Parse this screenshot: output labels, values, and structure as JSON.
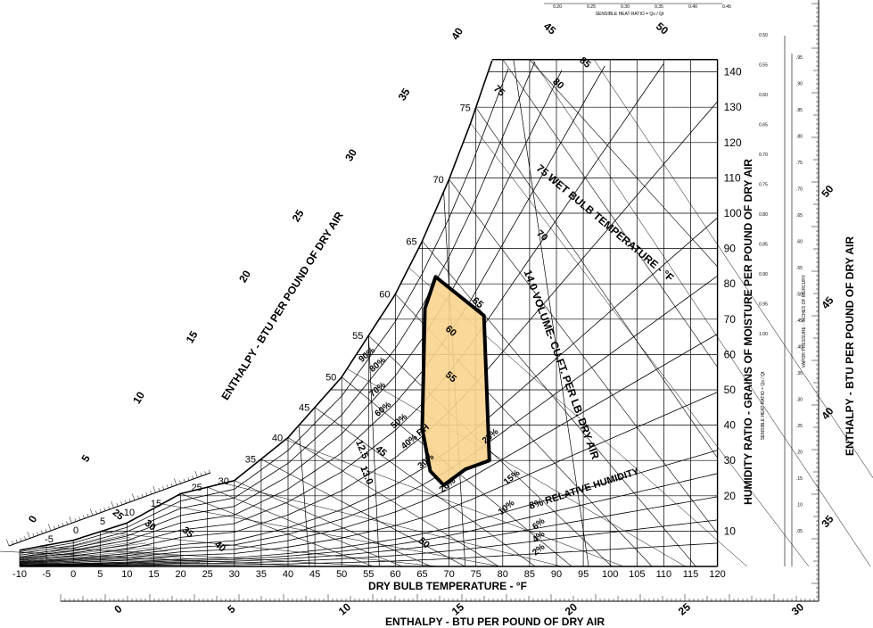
{
  "chart_data": {
    "type": "psychrometric",
    "title": "",
    "xlabel": "DRY BULB TEMPERATURE - °F",
    "ylabel": "HUMIDITY RATIO - GRAINS OF MOISTURE PER POUND OF DRY AIR",
    "enthalpy_label": "ENTHALPY - BTU PER POUND OF DRY AIR",
    "shr_label": "SENSIBLE HEAT RATIO = Qs / Qt",
    "shr_side_label": "SENSIBLE HEAT RATIO = Qs / Qt",
    "vapor_pressure_label": "VAPOR PRESSURE - INCHES OF MERCURY",
    "wet_bulb_label": "75 WET BULB TEMPERATURE - °F",
    "volume_label": "14.0 VOLUME- CU.FT. PER LB. DRY AIR",
    "rh_label": "8% RELATIVE HUMIDITY",
    "xlim": [
      -10,
      120
    ],
    "ylim": [
      0,
      150
    ],
    "x_ticks": [
      "-10",
      "-5",
      "0",
      "5",
      "10",
      "15",
      "20",
      "25",
      "30",
      "35",
      "40",
      "45",
      "50",
      "55",
      "60",
      "65",
      "70",
      "75",
      "80",
      "85",
      "90",
      "95",
      "100",
      "105",
      "110",
      "115",
      "120"
    ],
    "y_ticks": [
      "10",
      "20",
      "30",
      "40",
      "50",
      "60",
      "70",
      "80",
      "90",
      "100",
      "110",
      "120",
      "130",
      "140"
    ],
    "rh_curves": [
      {
        "rh": 100,
        "points": [
          [
            -10,
            4.6
          ],
          [
            0,
            7.4
          ],
          [
            10,
            12.3
          ],
          [
            20,
            20.6
          ],
          [
            30,
            24.3
          ],
          [
            40,
            36.5
          ],
          [
            50,
            53.6
          ],
          [
            60,
            77.1
          ],
          [
            65,
            92.1
          ],
          [
            70,
            109.6
          ],
          [
            74,
            125.5
          ],
          [
            78,
            143.2
          ]
        ]
      },
      {
        "rh": 90,
        "label": "90%"
      },
      {
        "rh": 80,
        "label": "80%"
      },
      {
        "rh": 70,
        "label": "70%"
      },
      {
        "rh": 60,
        "label": "60%"
      },
      {
        "rh": 50,
        "label": "50%"
      },
      {
        "rh": 40,
        "label": "40% RH"
      },
      {
        "rh": 30,
        "label": "30%"
      },
      {
        "rh": 25,
        "label": "25%"
      },
      {
        "rh": 20,
        "label": "20%"
      },
      {
        "rh": 15,
        "label": "15%"
      },
      {
        "rh": 10,
        "label": "10%"
      },
      {
        "rh": 8,
        "label": "8%"
      },
      {
        "rh": 6,
        "label": "6%"
      },
      {
        "rh": 4,
        "label": "4%"
      },
      {
        "rh": 2,
        "label": "2%"
      }
    ],
    "wet_bulb_labels": [
      "25",
      "30",
      "35",
      "40",
      "45",
      "50",
      "55",
      "60",
      "65",
      "70",
      "75",
      "80",
      "85"
    ],
    "wet_bulb_top_labels": [
      "45",
      "50"
    ],
    "volume_labels": [
      "12.5",
      "13.0",
      "13.5",
      "14.0"
    ],
    "enthalpy_left_labels": [
      "0",
      "5",
      "10",
      "15",
      "20",
      "25",
      "30",
      "35",
      "40"
    ],
    "enthalpy_bottom_labels": [
      "0",
      "5",
      "10",
      "15",
      "20",
      "25",
      "30"
    ],
    "enthalpy_right_labels": [
      "35",
      "40",
      "45",
      "50"
    ],
    "enthalpy_small_labels": [
      "-5",
      "0",
      "5",
      "10",
      "15"
    ],
    "dew_point_labels": [
      "25",
      "30",
      "35",
      "40",
      "45",
      "50",
      "55",
      "60",
      "65",
      "70",
      "75"
    ],
    "shr_top_ticks": [
      "0.20",
      "0.25",
      "0.30",
      "0.35",
      "0.40",
      "0.45"
    ],
    "shr_right_ticks": [
      "0.50",
      "0.55",
      "0.60",
      "0.65",
      "0.70",
      "0.75",
      "0.80",
      "0.85",
      "0.90",
      "0.95",
      "1.00"
    ],
    "vapor_pressure_ticks": [
      ".95",
      ".90",
      ".85",
      ".80",
      ".75",
      ".70",
      ".65",
      ".60",
      ".55",
      ".50",
      ".45",
      ".40",
      ".35",
      ".30",
      ".25",
      ".20",
      ".15",
      ".10",
      ".05"
    ],
    "comfort_zone": {
      "color": "#F9D48F",
      "outline_color": "#000000",
      "points": [
        [
          67.5,
          82
        ],
        [
          76.5,
          71
        ],
        [
          77.5,
          30
        ],
        [
          73,
          27.5
        ],
        [
          69,
          23
        ],
        [
          66.5,
          27
        ],
        [
          65,
          39
        ],
        [
          65.5,
          73
        ]
      ]
    }
  }
}
